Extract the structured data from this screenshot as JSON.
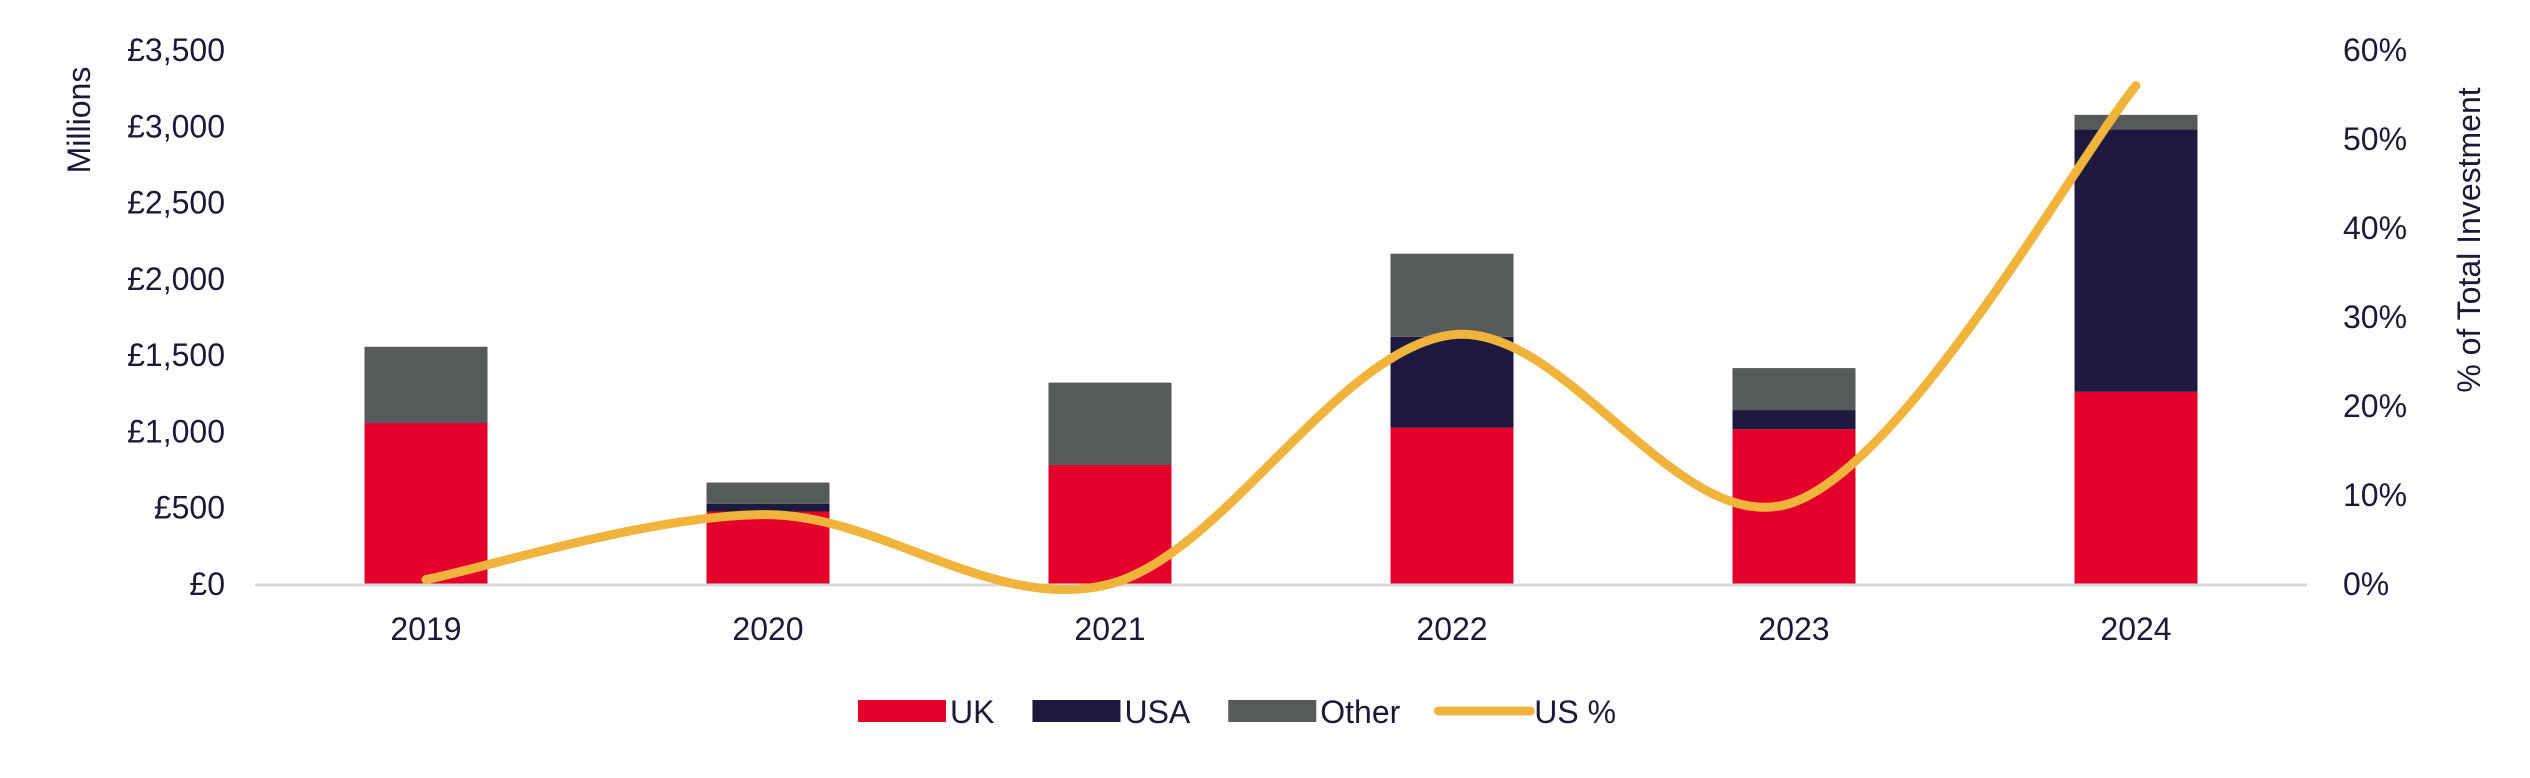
{
  "chart_data": {
    "type": "bar",
    "stacked": true,
    "categories": [
      "2019",
      "2020",
      "2021",
      "2022",
      "2023",
      "2024"
    ],
    "series": [
      {
        "name": "UK",
        "type": "bar",
        "axis": "left",
        "color": "#e4002b",
        "values": [
          1055,
          475,
          780,
          1025,
          1015,
          1260
        ]
      },
      {
        "name": "USA",
        "type": "bar",
        "axis": "left",
        "color": "#1e1a3f",
        "values": [
          0,
          50,
          0,
          595,
          125,
          1720
        ]
      },
      {
        "name": "Other",
        "type": "bar",
        "axis": "left",
        "color": "#575a5b",
        "values": [
          500,
          140,
          540,
          545,
          275,
          95
        ]
      },
      {
        "name": "US %",
        "type": "line",
        "smooth": true,
        "axis": "right",
        "color": "#f0b43c",
        "values": [
          0.5,
          7.8,
          0,
          28,
          9.2,
          56
        ]
      }
    ],
    "ylabel": "Millions",
    "y2label": "% of Total Investment",
    "ylim": [
      0,
      3500
    ],
    "y2lim": [
      0,
      60
    ],
    "yticks": [
      "£0",
      "£500",
      "£1,000",
      "£1,500",
      "£2,000",
      "£2,500",
      "£3,000",
      "£3,500"
    ],
    "y2ticks": [
      "0%",
      "10%",
      "20%",
      "30%",
      "40%",
      "50%",
      "60%"
    ],
    "grid": false,
    "legend": "bottom"
  }
}
